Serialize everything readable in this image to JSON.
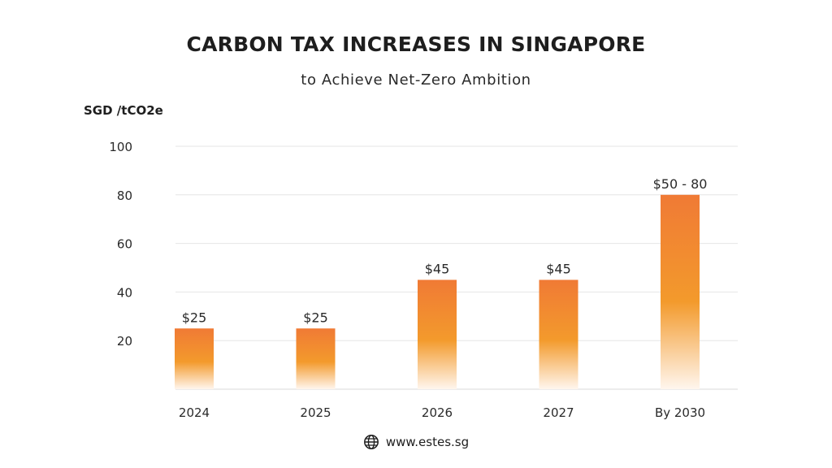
{
  "chart_data": {
    "type": "bar",
    "title": "CARBON TAX INCREASES IN SINGAPORE",
    "subtitle": "to Achieve Net-Zero Ambition",
    "ylabel": "SGD /tCO2e",
    "xlabel": "",
    "categories": [
      "2024",
      "2025",
      "2026",
      "2027",
      "By 2030"
    ],
    "values": [
      25,
      25,
      45,
      45,
      80
    ],
    "data_labels": [
      "$25",
      "$25",
      "$45",
      "$45",
      "$50 - 80"
    ],
    "ylim": [
      0,
      100
    ],
    "yticks": [
      20,
      40,
      60,
      80,
      100
    ],
    "grid": true,
    "bar_color_top": "#f07a35",
    "bar_color_mid": "#f39a2c",
    "bar_color_bottom": "#fff6ee"
  },
  "footer": {
    "icon": "globe-icon",
    "text": "www.estes.sg"
  }
}
